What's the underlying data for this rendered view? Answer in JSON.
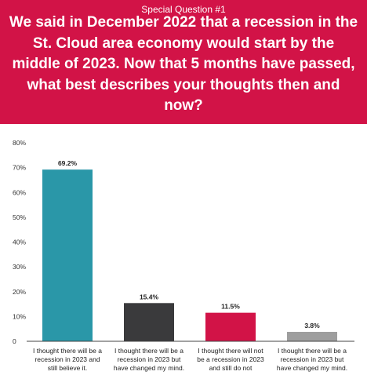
{
  "header": {
    "subtitle": "Special Question #1",
    "title": "We said in December 2022 that a recession in the St. Cloud area economy would start by the middle of 2023. Now that 5 months have passed, what best describes your thoughts then and now?"
  },
  "chart_data": {
    "type": "bar",
    "categories": [
      "I thought there will be a recession in 2023 and still believe it.",
      "I thought there will be a recession in 2023 but have changed my mind.",
      "I thought there will not be a recession in 2023 and still do not",
      "I thought there will be a recession in 2023 but have changed my mind."
    ],
    "category_lines": [
      [
        "I thought there will be a",
        "recession in 2023 and",
        "still believe it."
      ],
      [
        "I thought there will be a",
        "recession in 2023 but",
        "have changed my mind."
      ],
      [
        "I thought there will not",
        "be a recession in 2023",
        "and still do not"
      ],
      [
        "I thought there will be a",
        "recession in 2023 but",
        "have changed my mind."
      ]
    ],
    "values": [
      69.2,
      15.4,
      11.5,
      3.8
    ],
    "value_labels": [
      "69.2%",
      "15.4%",
      "11.5%",
      "3.8%"
    ],
    "colors": [
      "#2a97a8",
      "#3a3a3c",
      "#d21347",
      "#9e9e9e"
    ],
    "ylim": [
      0,
      80
    ],
    "yticks": [
      0,
      10,
      20,
      30,
      40,
      50,
      60,
      70,
      80
    ],
    "ytick_labels": [
      "0",
      "10%",
      "20%",
      "30%",
      "40%",
      "50%",
      "60%",
      "70%",
      "80%"
    ],
    "grid": false,
    "legend": "none"
  }
}
